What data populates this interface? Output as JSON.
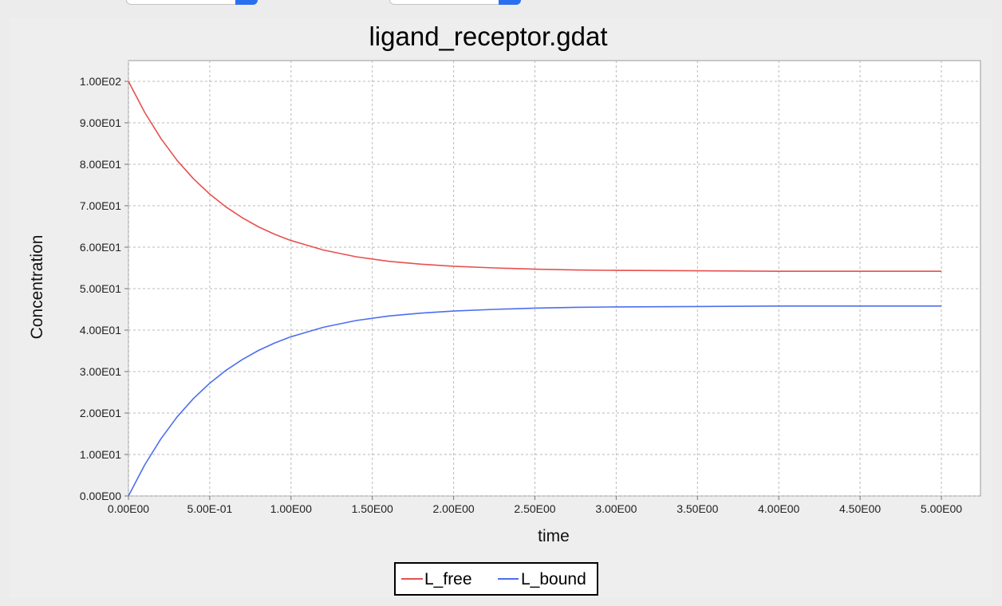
{
  "chart_data": {
    "type": "line",
    "title": "ligand_receptor.gdat",
    "xlabel": "time",
    "ylabel": "Concentration",
    "xlim": [
      0,
      5
    ],
    "ylim": [
      0,
      100
    ],
    "grid": true,
    "legend_position": "bottom-center",
    "x_tick_values": [
      0,
      0.5,
      1,
      1.5,
      2,
      2.5,
      3,
      3.5,
      4,
      4.5,
      5
    ],
    "x_tick_labels": [
      "0.00E00",
      "5.00E-01",
      "1.00E00",
      "1.50E00",
      "2.00E00",
      "2.50E00",
      "3.00E00",
      "3.50E00",
      "4.00E00",
      "4.50E00",
      "5.00E00"
    ],
    "y_tick_values": [
      0,
      10,
      20,
      30,
      40,
      50,
      60,
      70,
      80,
      90,
      100
    ],
    "y_tick_labels": [
      "0.00E00",
      "1.00E01",
      "2.00E01",
      "3.00E01",
      "4.00E01",
      "5.00E01",
      "6.00E01",
      "7.00E01",
      "8.00E01",
      "9.00E01",
      "1.00E02"
    ],
    "x": [
      0,
      0.1,
      0.2,
      0.3,
      0.4,
      0.5,
      0.6,
      0.7,
      0.8,
      0.9,
      1.0,
      1.2,
      1.4,
      1.6,
      1.8,
      2.0,
      2.25,
      2.5,
      2.75,
      3.0,
      3.5,
      4.0,
      4.5,
      5.0
    ],
    "series": [
      {
        "name": "L_free",
        "color": "#e8504f",
        "values": [
          100,
          92.5,
          86.2,
          80.9,
          76.5,
          72.8,
          69.7,
          67.1,
          64.9,
          63.1,
          61.6,
          59.3,
          57.7,
          56.6,
          55.9,
          55.4,
          55.0,
          54.7,
          54.5,
          54.4,
          54.3,
          54.2,
          54.2,
          54.2
        ]
      },
      {
        "name": "L_bound",
        "color": "#4d6ef0",
        "values": [
          0,
          7.5,
          13.8,
          19.1,
          23.5,
          27.2,
          30.3,
          32.9,
          35.1,
          36.9,
          38.4,
          40.7,
          42.3,
          43.4,
          44.1,
          44.6,
          45.0,
          45.3,
          45.5,
          45.6,
          45.7,
          45.8,
          45.8,
          45.8
        ]
      }
    ]
  }
}
